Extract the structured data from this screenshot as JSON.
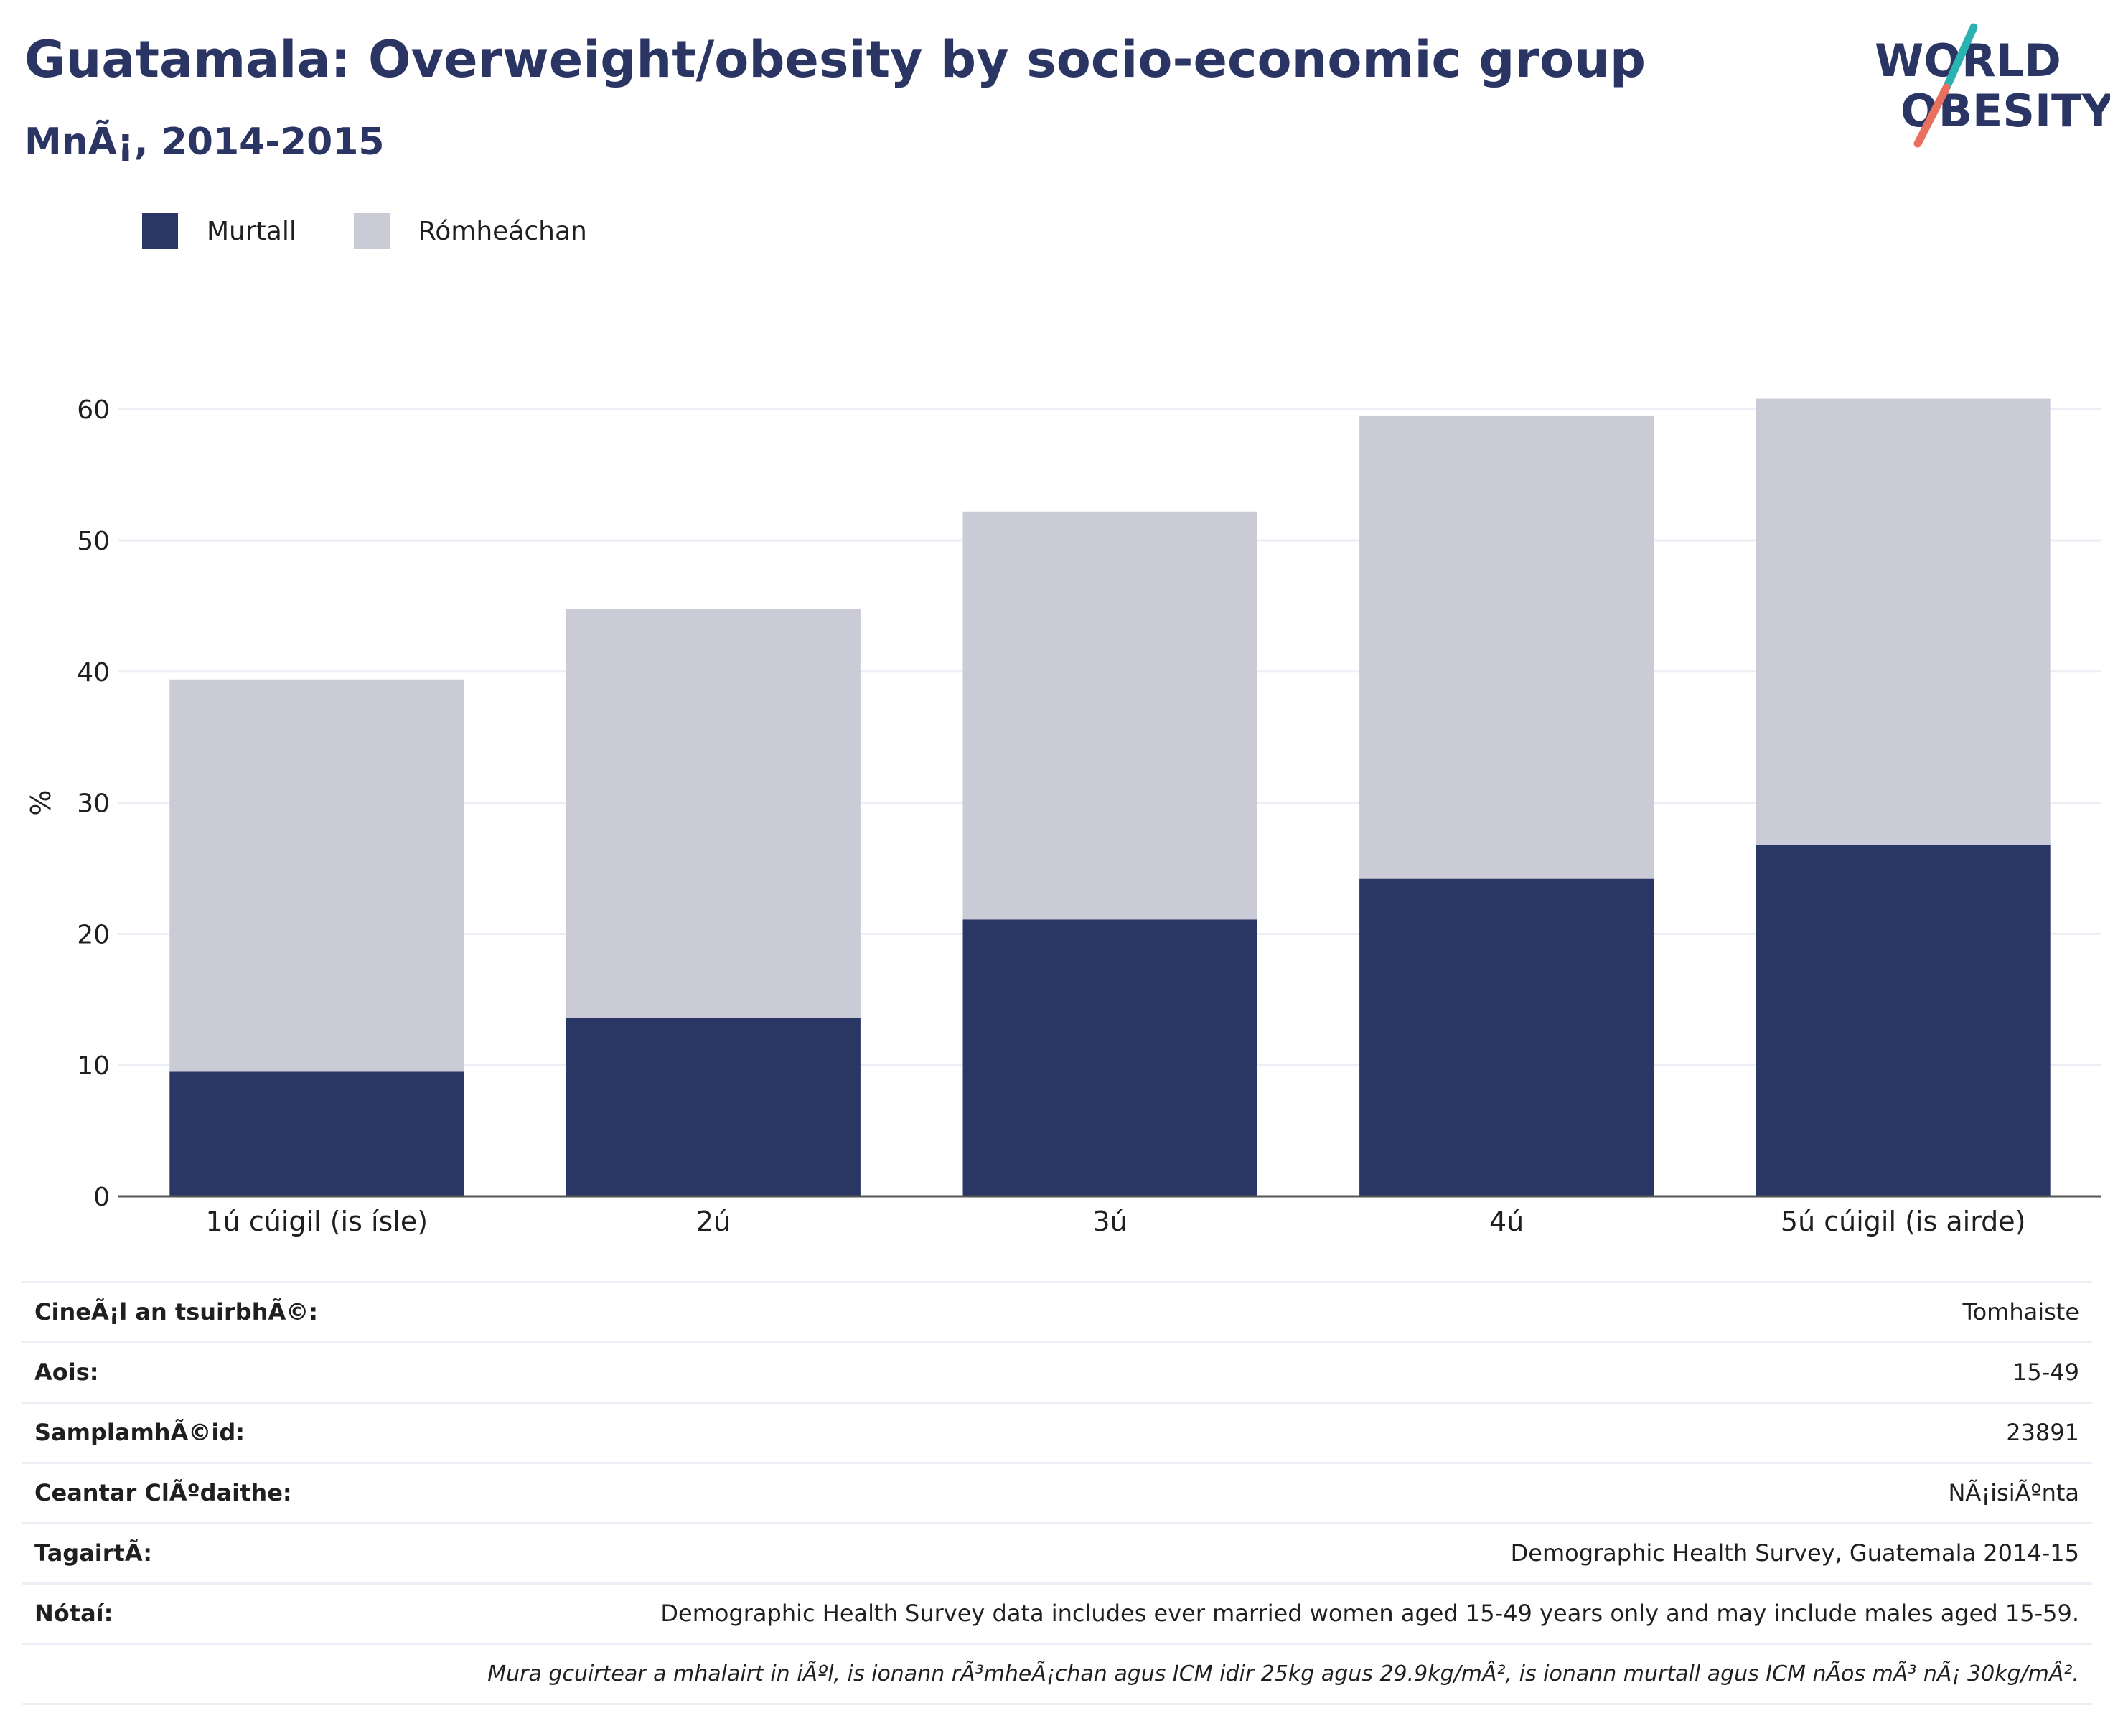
{
  "header": {
    "title": "Guatamala: Overweight/obesity by socio-economic group",
    "subtitle": "MnÃ¡, 2014-2015"
  },
  "logo": {
    "line1": "WORLD",
    "line2": "OBESITY",
    "slash_colors": [
      "#2bb3b1",
      "#e8705f"
    ],
    "text_color": "#2b3564"
  },
  "colors": {
    "obese": "#2a3664",
    "overweight": "#cacbd7",
    "grid": "#eceef5",
    "axis": "#555555"
  },
  "legend": {
    "items": [
      {
        "label": "Murtall",
        "color": "#2a3664"
      },
      {
        "label": "Rómheáchan",
        "color": "#cacbd7"
      }
    ]
  },
  "chart_data": {
    "type": "bar",
    "stacked": true,
    "categories": [
      "1ú cúigil (is ísle)",
      "2ú",
      "3ú",
      "4ú",
      "5ú cúigil (is airde)"
    ],
    "series": [
      {
        "name": "Murtall",
        "values": [
          9.5,
          13.6,
          21.1,
          24.2,
          26.8
        ]
      },
      {
        "name": "Rómheáchan",
        "values": [
          29.9,
          31.2,
          31.1,
          35.3,
          34.0
        ]
      }
    ],
    "ylabel": "%",
    "ylim": [
      0,
      62
    ],
    "yticks": [
      0,
      10,
      20,
      30,
      40,
      50,
      60
    ],
    "grid": true,
    "legend_position": "top-left"
  },
  "info": {
    "rows": [
      {
        "label": "CineÃ¡l an tsuirbhÃ©:",
        "value": "Tomhaiste"
      },
      {
        "label": "Aois:",
        "value": "15-49"
      },
      {
        "label": "SamplamhÃ©id:",
        "value": "23891"
      },
      {
        "label": "Ceantar ClÃºdaithe:",
        "value": "NÃ¡isiÃºnta"
      },
      {
        "label": "TagairtÃ:",
        "value": "Demographic Health Survey, Guatemala 2014-15"
      },
      {
        "label": "Nótaí:",
        "value": "Demographic Health Survey data includes ever married women aged 15-49 years only and may include males aged 15-59."
      },
      {
        "label": "",
        "value": "Mura gcuirtear a mhalairt in iÃºl, is ionann rÃ³mheÃ¡chan agus ICM idir 25kg agus 29.9kg/mÂ², is ionann murtall agus ICM nÃos mÃ³ nÃ¡ 30kg/mÂ²."
      }
    ]
  }
}
